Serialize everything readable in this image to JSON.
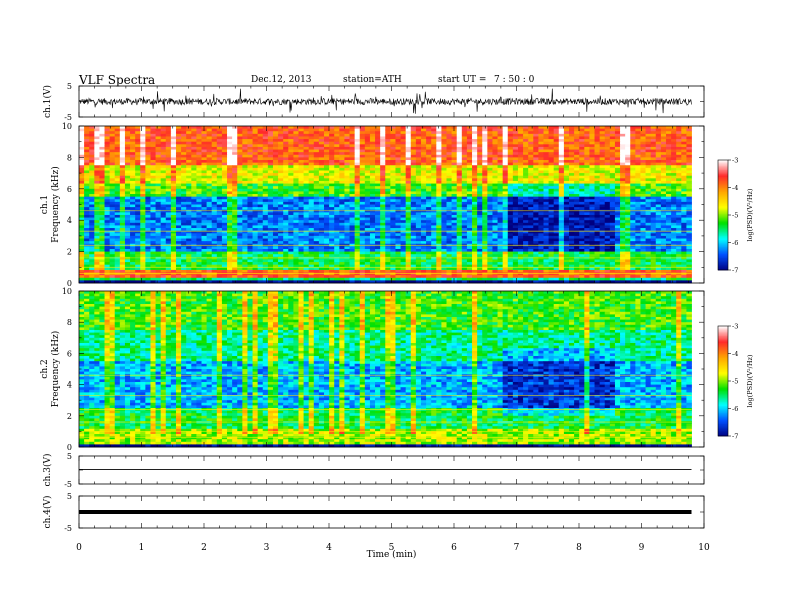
{
  "header": {
    "title": "VLF  Spectra",
    "date": "Dec.12, 2013",
    "station": "station=ATH",
    "start_label": "start  UT  =",
    "start_ut": "7 : 50 : 0"
  },
  "colorbar": {
    "ticks": [
      "-3",
      "-4",
      "-5",
      "-6",
      "-7"
    ],
    "label": "log(PSD)(V²/Hz)",
    "colors": [
      "#ffffff",
      "#ff2a2a",
      "#ffa500",
      "#ffff00",
      "#00e000",
      "#00ffff",
      "#0050ff",
      "#000080"
    ]
  },
  "chart_data": [
    {
      "type": "line",
      "panel": "ch.1 waveform",
      "ylabel": "ch.1(V)",
      "yticks": [
        "5",
        "-5"
      ],
      "ylim": [
        -5,
        5
      ],
      "xlim": [
        0,
        10
      ],
      "x_range_min": [
        0,
        9.8
      ],
      "approx_level_V": 0,
      "approx_amplitude_V": 1.5
    },
    {
      "type": "heatmap",
      "panel": "ch.1 spectrogram",
      "ylabel": "ch.1\nFrequency  (kHz)",
      "yticks": [
        "0",
        "2",
        "4",
        "6",
        "8",
        "10"
      ],
      "ylim_kHz": [
        0,
        10
      ],
      "xlim_min": [
        0,
        10
      ],
      "color_scale_log_psd": [
        -7,
        -3
      ],
      "bands_log_psd": [
        {
          "f_kHz": [
            0.0,
            0.15
          ],
          "value": -7.0
        },
        {
          "f_kHz": [
            0.3,
            0.9
          ],
          "value": -3.8
        },
        {
          "f_kHz": [
            0.9,
            2.0
          ],
          "value": -5.4
        },
        {
          "f_kHz": [
            2.0,
            5.5
          ],
          "value": -6.3
        },
        {
          "f_kHz": [
            5.5,
            6.3
          ],
          "value": -5.2
        },
        {
          "f_kHz": [
            6.3,
            7.5
          ],
          "value": -4.7
        },
        {
          "f_kHz": [
            7.5,
            10.0
          ],
          "value": -3.8
        }
      ],
      "quiet_interval_min": [
        6.8,
        8.6
      ]
    },
    {
      "type": "heatmap",
      "panel": "ch.2 spectrogram",
      "ylabel": "ch.2\nFrequency  (kHz)",
      "yticks": [
        "0",
        "2",
        "4",
        "6",
        "8",
        "10"
      ],
      "ylim_kHz": [
        0,
        10
      ],
      "xlim_min": [
        0,
        10
      ],
      "color_scale_log_psd": [
        -7,
        -3
      ],
      "bands_log_psd": [
        {
          "f_kHz": [
            0.0,
            0.15
          ],
          "value": -7.0
        },
        {
          "f_kHz": [
            0.2,
            1.2
          ],
          "value": -4.9
        },
        {
          "f_kHz": [
            1.2,
            2.5
          ],
          "value": -5.4
        },
        {
          "f_kHz": [
            2.5,
            5.5
          ],
          "value": -6.1
        },
        {
          "f_kHz": [
            5.5,
            7.5
          ],
          "value": -5.6
        },
        {
          "f_kHz": [
            7.5,
            10.0
          ],
          "value": -5.2
        }
      ],
      "quiet_interval_min": [
        6.8,
        8.6
      ]
    },
    {
      "type": "line",
      "panel": "ch.3 waveform",
      "ylabel": "ch.3(V)",
      "yticks": [
        "5",
        "-5"
      ],
      "ylim": [
        -5,
        5
      ],
      "x_range_min": [
        0,
        9.8
      ],
      "approx_level_V": 0.2
    },
    {
      "type": "line",
      "panel": "ch.4 waveform",
      "ylabel": "ch.4(V)",
      "yticks": [
        "5",
        "-5"
      ],
      "ylim": [
        -5,
        5
      ],
      "x_range_min": [
        0,
        9.8
      ],
      "approx_level_V": 0.0
    }
  ],
  "xaxis": {
    "label": "Time  (min)",
    "ticks": [
      "0",
      "1",
      "2",
      "3",
      "4",
      "5",
      "6",
      "7",
      "8",
      "9",
      "10"
    ]
  }
}
